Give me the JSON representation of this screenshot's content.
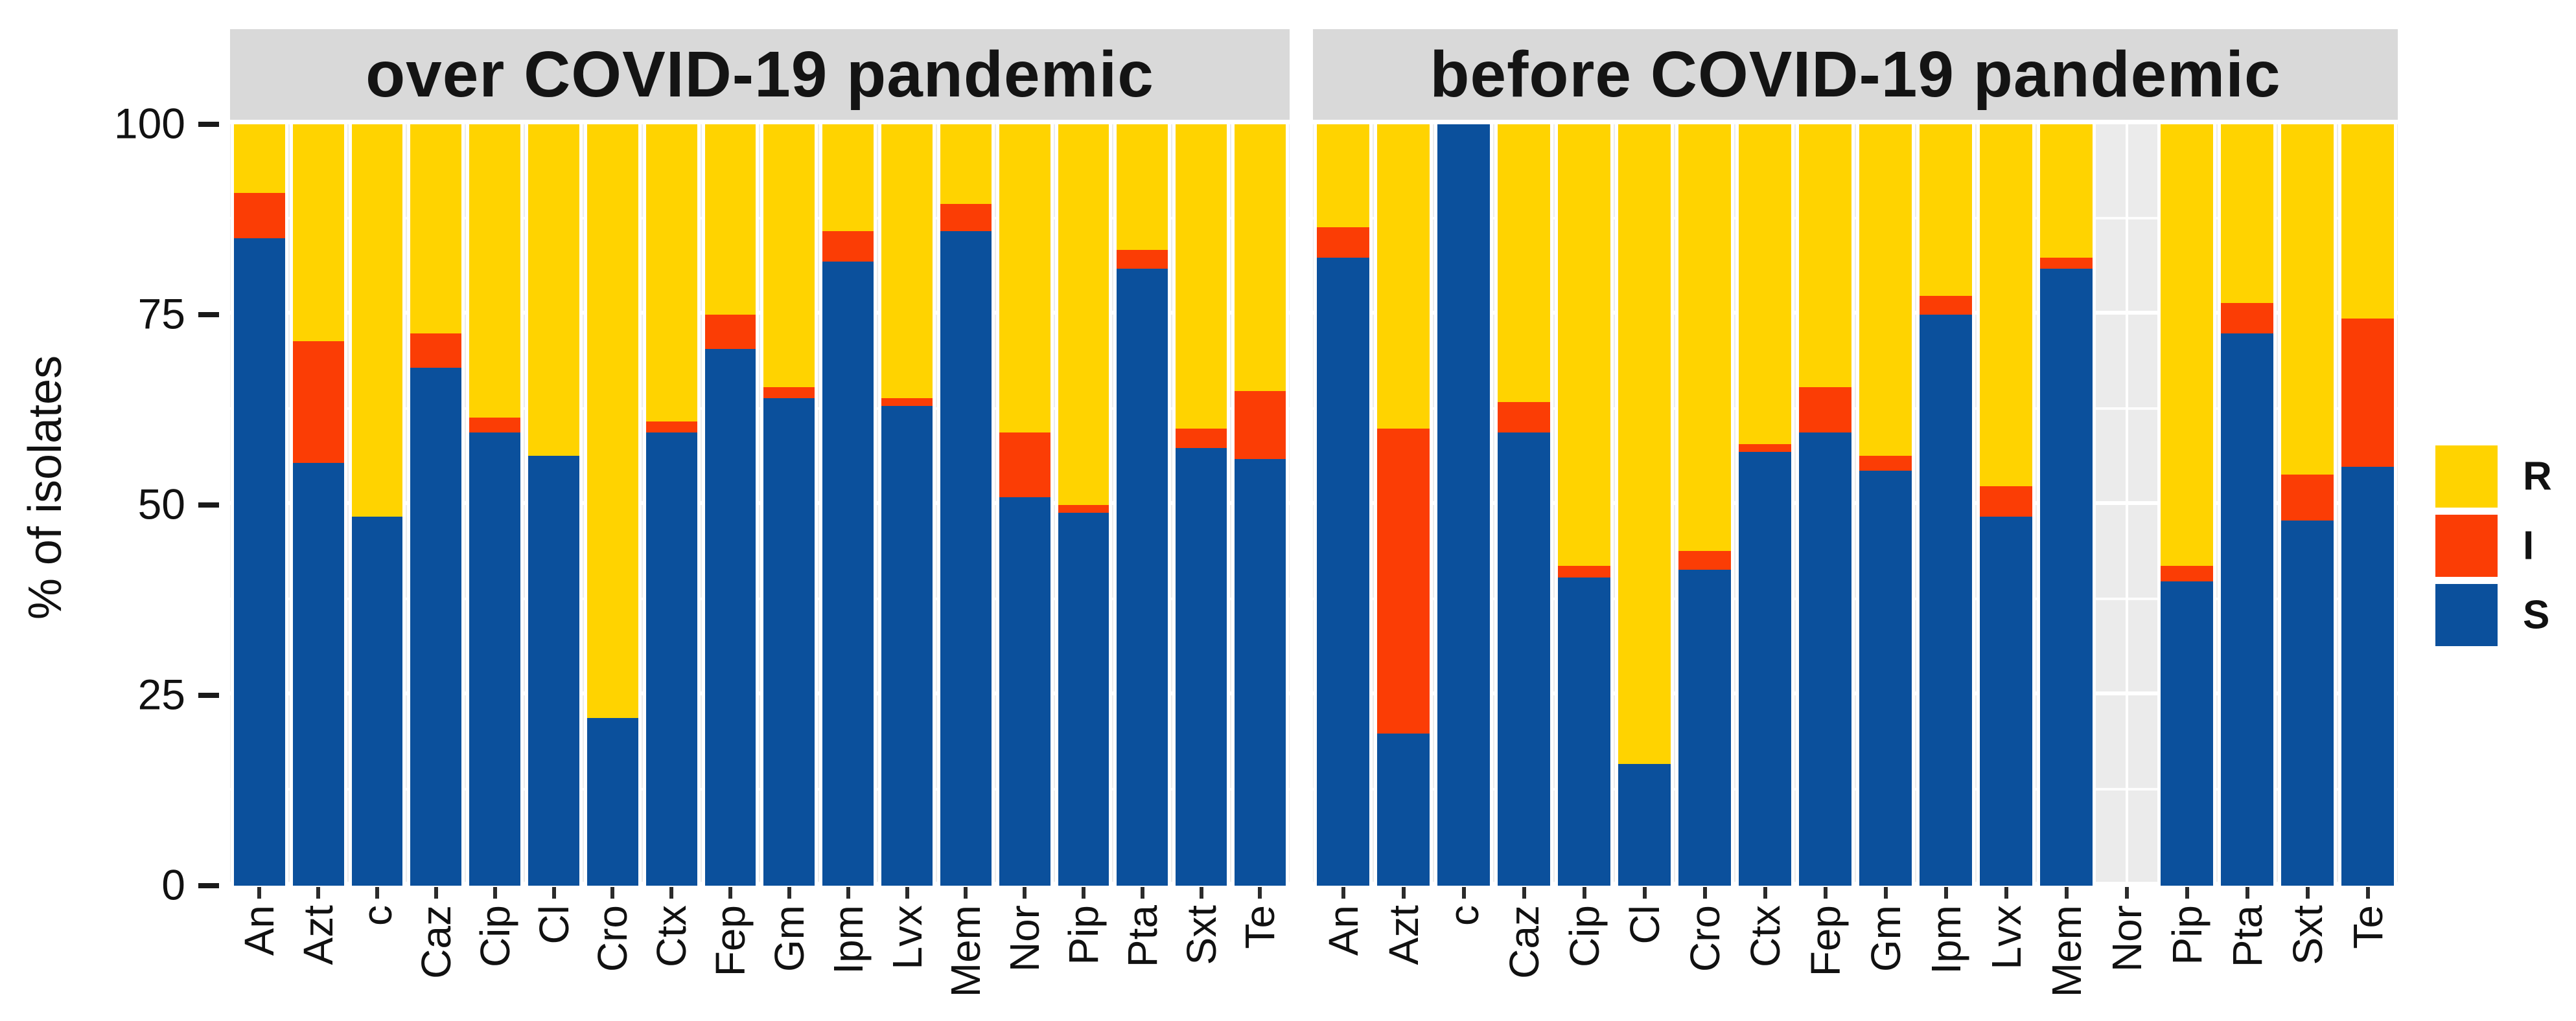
{
  "y_axis": {
    "title": "% of isolates",
    "ticks": [
      "100",
      "75",
      "50",
      "25",
      "0"
    ]
  },
  "legend": {
    "items": [
      {
        "label": "R",
        "color": "#FFD300"
      },
      {
        "label": "I",
        "color": "#FB3D05"
      },
      {
        "label": "S",
        "color": "#0B509C"
      }
    ]
  },
  "chart_data": {
    "type": "bar",
    "stacked": true,
    "stack_total": 100,
    "ylabel": "% of isolates",
    "ylim": [
      0,
      100
    ],
    "yticks": [
      0,
      25,
      50,
      75,
      100
    ],
    "grid": "white-on-grey",
    "legend_position": "right",
    "categories": [
      "An",
      "Azt",
      "c",
      "Caz",
      "Cip",
      "Cl",
      "Cro",
      "Ctx",
      "Fep",
      "Gm",
      "Ipm",
      "Lvx",
      "Mem",
      "Nor",
      "Pip",
      "Pta",
      "Sxt",
      "Te"
    ],
    "panels": [
      {
        "title": "over COVID-19 pandemic",
        "series": [
          {
            "name": "S",
            "values": [
              85,
              55.5,
              48.5,
              68,
              59.5,
              56.5,
              22,
              59.5,
              70.5,
              64,
              82,
              63,
              86,
              51,
              49,
              81,
              57.5,
              56
            ]
          },
          {
            "name": "I",
            "values": [
              6,
              16,
              0,
              4.5,
              2,
              0,
              0,
              1.5,
              4.5,
              1.5,
              4,
              1,
              3.5,
              8.5,
              1,
              2.5,
              2.5,
              9
            ]
          },
          {
            "name": "R",
            "values": [
              9,
              28.5,
              51.5,
              27.5,
              38.5,
              43.5,
              78,
              39,
              25,
              34.5,
              14,
              36,
              10.5,
              40.5,
              50,
              16.5,
              40,
              35
            ]
          }
        ]
      },
      {
        "title": "before COVID-19 pandemic",
        "series": [
          {
            "name": "S",
            "values": [
              82.5,
              20,
              100,
              59.5,
              40.5,
              16,
              41.5,
              57,
              59.5,
              54.5,
              75,
              48.5,
              81,
              null,
              40,
              72.5,
              48,
              55
            ]
          },
          {
            "name": "I",
            "values": [
              4,
              40,
              0,
              4,
              1.5,
              0,
              2.5,
              1,
              6,
              2,
              2.5,
              4,
              1.5,
              null,
              2,
              4,
              6,
              19.5
            ]
          },
          {
            "name": "R",
            "values": [
              13.5,
              40,
              0,
              36.5,
              58,
              84,
              56,
              42,
              34.5,
              43.5,
              22.5,
              47.5,
              17.5,
              null,
              58,
              23.5,
              46,
              25.5
            ]
          }
        ]
      }
    ]
  }
}
